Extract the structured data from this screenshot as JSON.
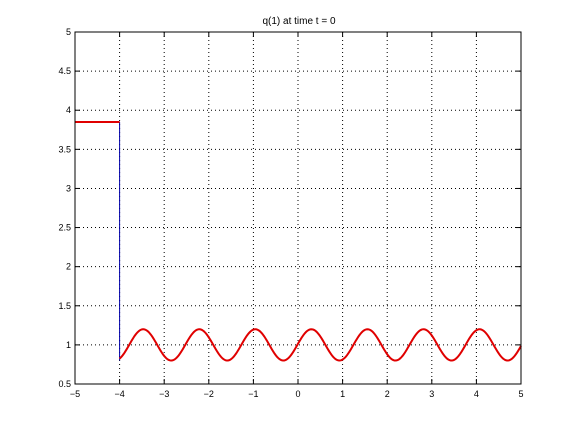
{
  "chart_data": {
    "type": "line",
    "title": "q(1)   at time t = 0",
    "xlabel": "",
    "ylabel": "",
    "xlim": [
      -5,
      5
    ],
    "ylim": [
      0.5,
      5
    ],
    "x_ticks": [
      -5,
      -4,
      -3,
      -2,
      -1,
      0,
      1,
      2,
      3,
      4,
      5
    ],
    "x_tick_labels": [
      "−5",
      "−4",
      "−3",
      "−2",
      "−1",
      "0",
      "1",
      "2",
      "3",
      "4",
      "5"
    ],
    "y_ticks": [
      0.5,
      1,
      1.5,
      2,
      2.5,
      3,
      3.5,
      4,
      4.5,
      5
    ],
    "y_tick_labels": [
      "0.5",
      "1",
      "1.5",
      "2",
      "2.5",
      "3",
      "3.5",
      "4",
      "4.5",
      "5"
    ],
    "grid": true,
    "series": [
      {
        "style": "solid",
        "color": "#e00000",
        "segments": [
          {
            "description": "constant state left of discontinuity",
            "x": [
              -5,
              -4
            ],
            "y": [
              3.85,
              3.85
            ]
          },
          {
            "description": "sinusoidal perturbation right of discontinuity",
            "x_start": -4,
            "x_end": 5,
            "mean": 1.0,
            "amplitude": 0.2,
            "wavelength": 1.257,
            "first_peak_x": 0.3
          }
        ]
      },
      {
        "style": "solid",
        "color": "#0000aa",
        "x": [
          -4,
          -4
        ],
        "y": [
          3.85,
          0.8
        ]
      }
    ]
  }
}
